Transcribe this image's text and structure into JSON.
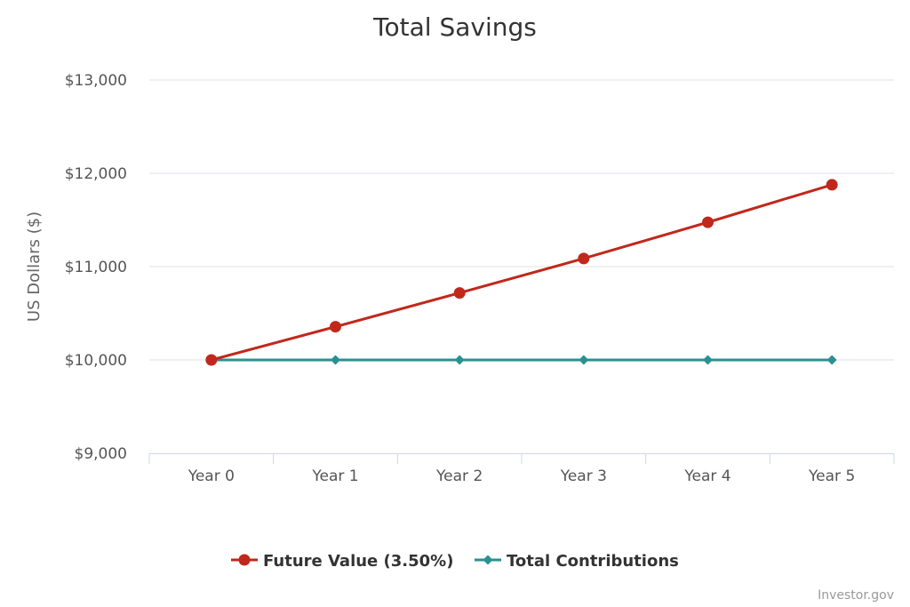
{
  "chart_data": {
    "type": "line",
    "title": "Total Savings",
    "ylabel": "US Dollars ($)",
    "xlabel": "",
    "categories": [
      "Year 0",
      "Year 1",
      "Year 2",
      "Year 3",
      "Year 4",
      "Year 5"
    ],
    "ylim": [
      9000,
      13000
    ],
    "yticks": [
      9000,
      10000,
      11000,
      12000,
      13000
    ],
    "ytick_labels": [
      "$9,000",
      "$10,000",
      "$11,000",
      "$12,000",
      "$13,000"
    ],
    "grid": true,
    "legend_position": "bottom-center",
    "series": [
      {
        "name": "Future Value (3.50%)",
        "values": [
          10000,
          10356,
          10718,
          11087,
          11475,
          11877
        ],
        "color": "#c0281b",
        "marker": "circle"
      },
      {
        "name": "Total Contributions",
        "values": [
          10000,
          10000,
          10000,
          10000,
          10000,
          10000
        ],
        "color": "#2a9090",
        "marker": "diamond"
      }
    ]
  },
  "credit": "Investor.gov"
}
